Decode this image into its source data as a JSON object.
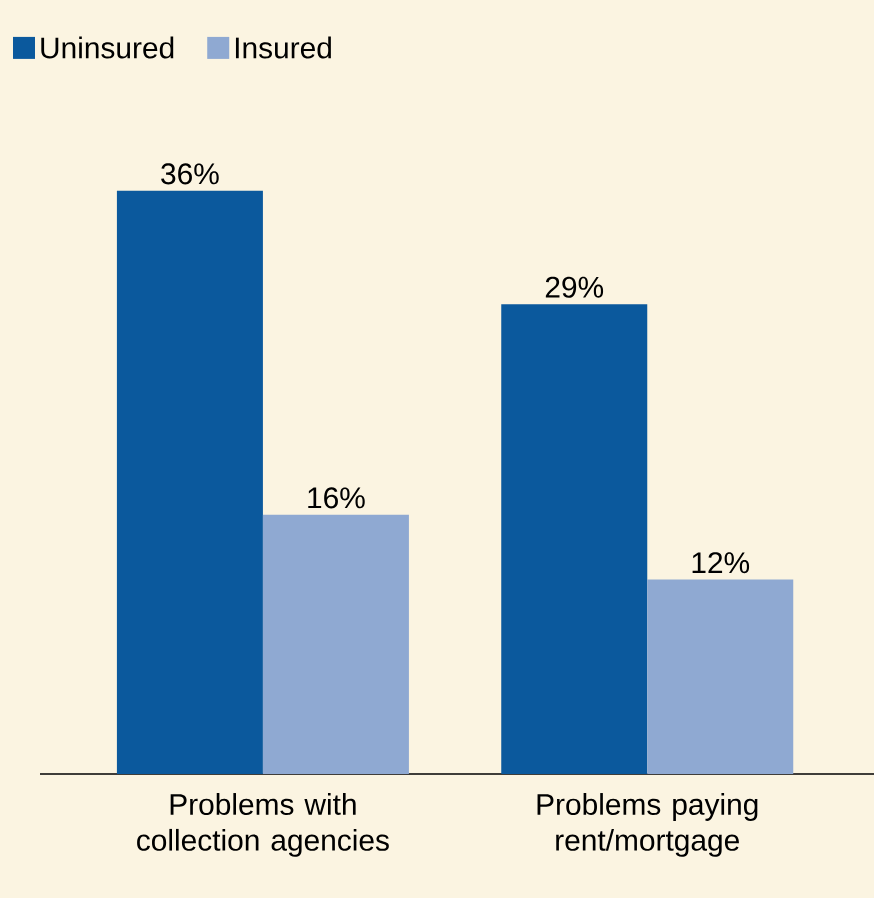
{
  "chart_data": {
    "type": "bar",
    "categories": [
      "Problems with collection agencies",
      "Problems paying rent/mortgage"
    ],
    "series": [
      {
        "name": "Uninsured",
        "color": "#0b599d",
        "values": [
          36,
          29
        ],
        "value_labels": [
          "36%",
          "29%"
        ]
      },
      {
        "name": "Insured",
        "color": "#8fa9d2",
        "values": [
          16,
          12
        ],
        "value_labels": [
          "16%",
          "12%"
        ]
      }
    ],
    "legend": "top left"
  }
}
